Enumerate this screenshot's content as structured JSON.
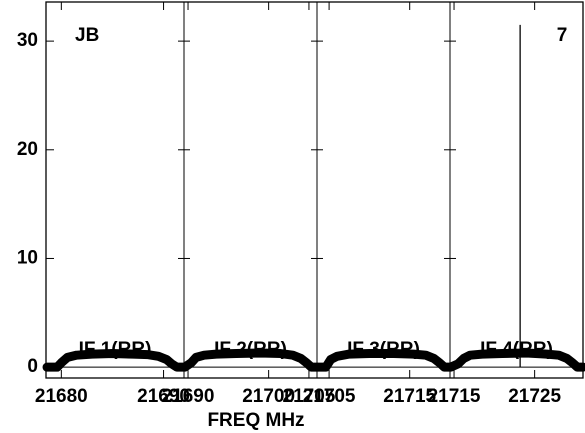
{
  "chart_data": {
    "type": "line",
    "xlabel": "FREQ MHz",
    "annotations": [
      "JB",
      "7"
    ],
    "color": "#000000",
    "ylim": [
      -1,
      33.6
    ],
    "yticks": [
      0,
      10,
      20,
      30
    ],
    "panels": [
      {
        "label": "IF 1(RR)",
        "xlim": [
          21678.5,
          21692
        ],
        "xticks": [
          21680,
          21690
        ],
        "x": [
          21678.6,
          21679.6,
          21680,
          21680.6,
          21681.5,
          21683,
          21685,
          21687,
          21688.5,
          21689.5,
          21690.3,
          21690.8,
          21691.3,
          21692
        ],
        "values": [
          0,
          0,
          0.4,
          0.9,
          1.1,
          1.2,
          1.25,
          1.2,
          1.15,
          1.0,
          0.7,
          0.3,
          0,
          0
        ]
      },
      {
        "label": "IF 2(RR)",
        "xlim": [
          21689.5,
          21706
        ],
        "xticks": [
          21690,
          21700,
          21705
        ],
        "x": [
          21689.6,
          21690.4,
          21691,
          21692,
          21693.5,
          21696,
          21699,
          21701.5,
          21703,
          21704,
          21704.7,
          21705.3,
          21706
        ],
        "values": [
          0,
          0.4,
          0.9,
          1.1,
          1.2,
          1.25,
          1.3,
          1.25,
          1.1,
          0.8,
          0.4,
          0,
          0
        ]
      },
      {
        "label": "IF 3(RR)",
        "xlim": [
          21703.5,
          21720
        ],
        "xticks": [
          21705,
          21715
        ],
        "x": [
          21703.6,
          21704.6,
          21705.2,
          21706,
          21707.5,
          21710,
          21713,
          21715.5,
          21717,
          21718,
          21718.7,
          21719.3,
          21720
        ],
        "values": [
          0,
          0,
          0.7,
          1.0,
          1.2,
          1.25,
          1.25,
          1.2,
          1.1,
          0.8,
          0.4,
          0,
          0
        ]
      },
      {
        "label": "IF 4(RR)",
        "xlim": [
          21714.5,
          21731
        ],
        "xticks": [
          21715,
          21725
        ],
        "x": [
          21714.6,
          21715.5,
          21716.2,
          21717,
          21718.5,
          21721,
          21724,
          21726.5,
          21728,
          21729,
          21729.7,
          21730.3,
          21731
        ],
        "values": [
          0,
          0.3,
          0.8,
          1.1,
          1.2,
          1.25,
          1.3,
          1.2,
          1.1,
          0.8,
          0.4,
          0,
          0
        ],
        "peak_x": 21723.2,
        "peak": 31.5
      }
    ]
  }
}
